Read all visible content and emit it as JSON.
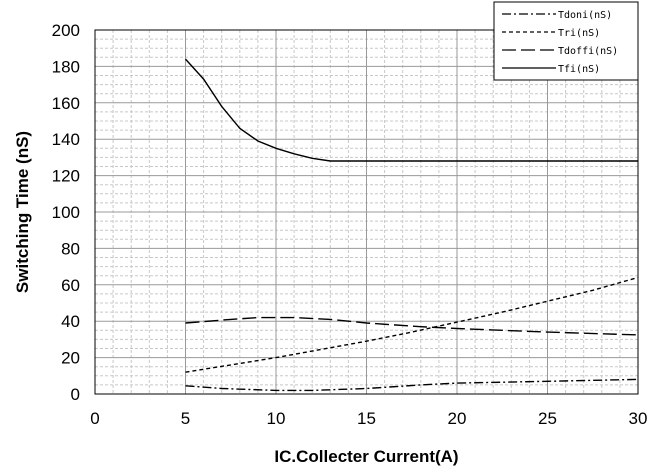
{
  "chart_data": {
    "type": "line",
    "xlabel": "IC.Collecter Current(A)",
    "ylabel": "Switching Time (nS)",
    "xlim": [
      0,
      30
    ],
    "ylim": [
      0,
      200
    ],
    "x_ticks": [
      "0",
      "5",
      "10",
      "15",
      "20",
      "25",
      "30"
    ],
    "y_ticks": [
      "0",
      "20",
      "40",
      "60",
      "80",
      "100",
      "120",
      "140",
      "160",
      "180",
      "200"
    ],
    "grid": true,
    "legend_position": "top-right",
    "series": [
      {
        "name": "Tdoni(nS)",
        "dash": "dash-dot",
        "x": [
          5,
          7,
          10,
          12,
          15,
          18,
          20,
          25,
          30
        ],
        "y": [
          4.5,
          3,
          2,
          2,
          3,
          5,
          6,
          7,
          8
        ]
      },
      {
        "name": "Tri(nS)",
        "dash": "short-dash",
        "x": [
          5,
          7.5,
          10,
          12.5,
          15,
          17.5,
          20,
          22.5,
          25,
          27.5,
          30
        ],
        "y": [
          12,
          16,
          20,
          24.5,
          29,
          34,
          39.5,
          45,
          51,
          57,
          64
        ]
      },
      {
        "name": "Tdoffi(nS)",
        "dash": "long-dash",
        "x": [
          5,
          7.5,
          9,
          11,
          13,
          15,
          18,
          20,
          25,
          30
        ],
        "y": [
          39,
          41,
          42,
          42,
          41,
          39,
          37,
          36,
          34,
          32.5
        ]
      },
      {
        "name": "Tfi(nS)",
        "dash": "solid",
        "x": [
          5,
          6,
          7,
          8,
          9,
          10,
          11,
          12,
          13,
          15,
          20,
          25,
          30
        ],
        "y": [
          184,
          173,
          158,
          146,
          139,
          135,
          132,
          129.5,
          128,
          128,
          128,
          128,
          128
        ]
      }
    ]
  }
}
